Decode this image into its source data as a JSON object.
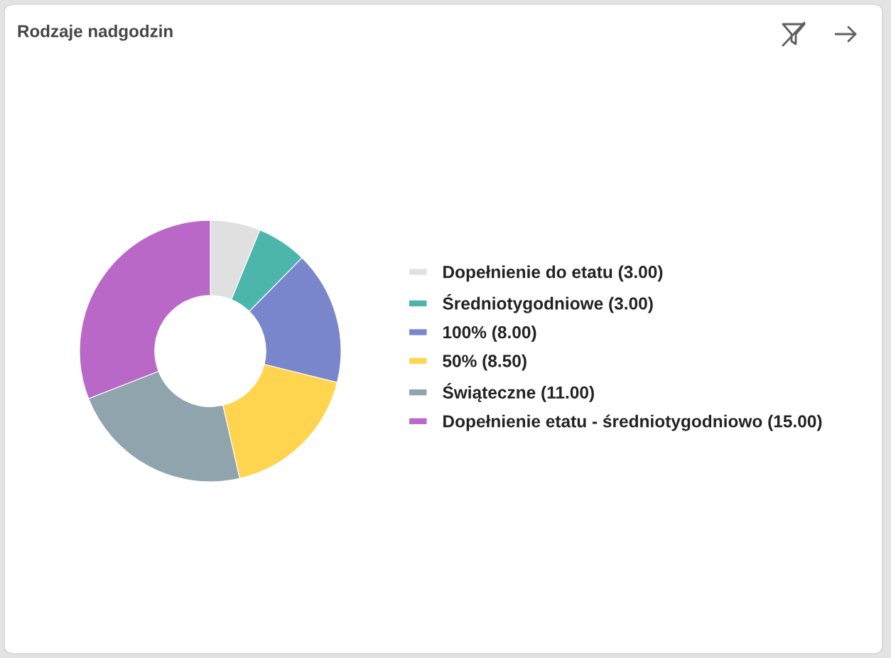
{
  "chart_data": {
    "type": "donut",
    "title": "Rodzaje nadgodzin",
    "categories": [
      "Dopełnienie do etatu (3.00)",
      "Średniotygodniowe (3.00)",
      "100% (8.00)",
      "50% (8.50)",
      "Świąteczne (11.00)",
      "Dopełnienie etatu - średniotygodniowo (15.00)"
    ],
    "values": [
      3,
      3,
      8,
      8.5,
      11,
      15
    ],
    "colors": [
      "#e0e0e0",
      "#4db6ac",
      "#7986cb",
      "#ffd54f",
      "#90a4ae",
      "#ba68c8"
    ],
    "legend": "right"
  }
}
